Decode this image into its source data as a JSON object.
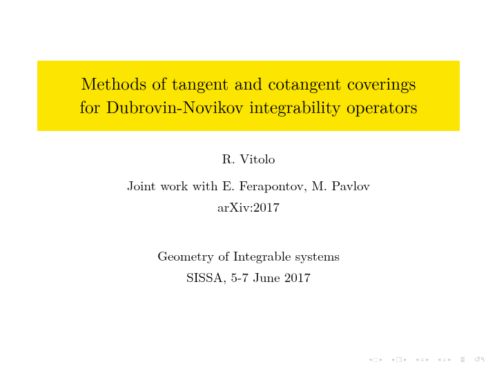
{
  "title": {
    "line1": "Methods of tangent and cotangent coverings",
    "line2": "for Dubrovin-Novikov integrability operators",
    "background_color": "#fce500",
    "text_color": "#000000",
    "fontsize": 25
  },
  "author": "R. Vitolo",
  "joint_work": "Joint work with E. Ferapontov, M. Pavlov",
  "arxiv": "arXiv:2017",
  "conference": "Geometry of Integrable systems",
  "venue": "SISSA, 5-7 June 2017",
  "body_fontsize": 19,
  "body_color": "#000000",
  "nav": {
    "color": "#c9c9c9",
    "icons": {
      "frame": "□",
      "sub": "❐",
      "back": "≡",
      "fwd": "≡",
      "mode": "≣",
      "undo": "↶↷"
    }
  }
}
